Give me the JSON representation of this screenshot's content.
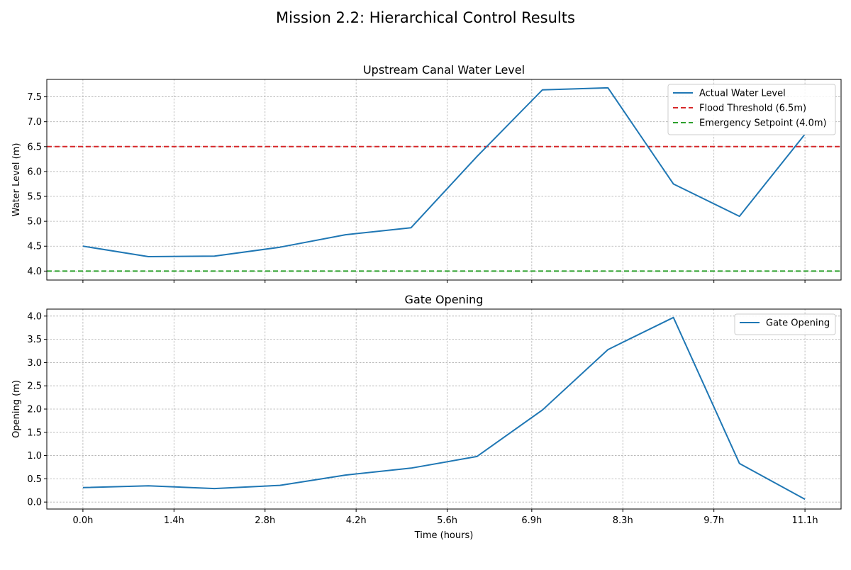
{
  "figure": {
    "suptitle": "Mission 2.2: Hierarchical Control Results"
  },
  "colors": {
    "series": "#1f77b4",
    "flood": "#d62728",
    "setpoint": "#2ca02c"
  },
  "chart_data": [
    {
      "type": "line",
      "title": "Upstream Canal Water Level",
      "ylabel": "Water Level (m)",
      "xlabel": "",
      "xlim": [
        -0.7,
        14.7
      ],
      "ylim": [
        3.82,
        7.85
      ],
      "yticks": [
        "4.0",
        "4.5",
        "5.0",
        "5.5",
        "6.0",
        "6.5",
        "7.0",
        "7.5"
      ],
      "xtick_labels": [],
      "grid": true,
      "legend_position": "top-right",
      "series": [
        {
          "name": "Actual Water Level",
          "x": [
            0,
            1.27,
            2.55,
            3.82,
            5.09,
            6.36,
            7.64,
            8.91,
            10.18,
            11.45,
            12.73,
            14.0
          ],
          "y": [
            4.5,
            4.29,
            4.3,
            4.48,
            4.73,
            4.87,
            6.3,
            7.64,
            7.68,
            5.75,
            5.1,
            6.75
          ]
        }
      ],
      "hlines": [
        {
          "name": "Flood Threshold (6.5m)",
          "y": 6.5,
          "color": "#d62728"
        },
        {
          "name": "Emergency Setpoint (4.0m)",
          "y": 4.0,
          "color": "#2ca02c"
        }
      ]
    },
    {
      "type": "line",
      "title": "Gate Opening",
      "ylabel": "Opening (m)",
      "xlabel": "Time (hours)",
      "xlim": [
        -0.7,
        14.7
      ],
      "ylim": [
        -0.15,
        4.15
      ],
      "yticks": [
        "0.0",
        "0.5",
        "1.0",
        "1.5",
        "2.0",
        "2.5",
        "3.0",
        "3.5",
        "4.0"
      ],
      "xtick_labels": [
        "0.0h",
        "1.4h",
        "2.8h",
        "4.2h",
        "5.6h",
        "6.9h",
        "8.3h",
        "9.7h",
        "11.1h"
      ],
      "grid": true,
      "legend_position": "top-right",
      "series": [
        {
          "name": "Gate Opening",
          "x": [
            0,
            1.27,
            2.55,
            3.82,
            5.09,
            6.36,
            7.64,
            8.91,
            10.18,
            11.45,
            12.73,
            14.0
          ],
          "y": [
            0.31,
            0.35,
            0.29,
            0.36,
            0.58,
            0.73,
            0.98,
            1.98,
            3.28,
            3.97,
            0.83,
            0.06
          ]
        }
      ],
      "hlines": []
    }
  ]
}
